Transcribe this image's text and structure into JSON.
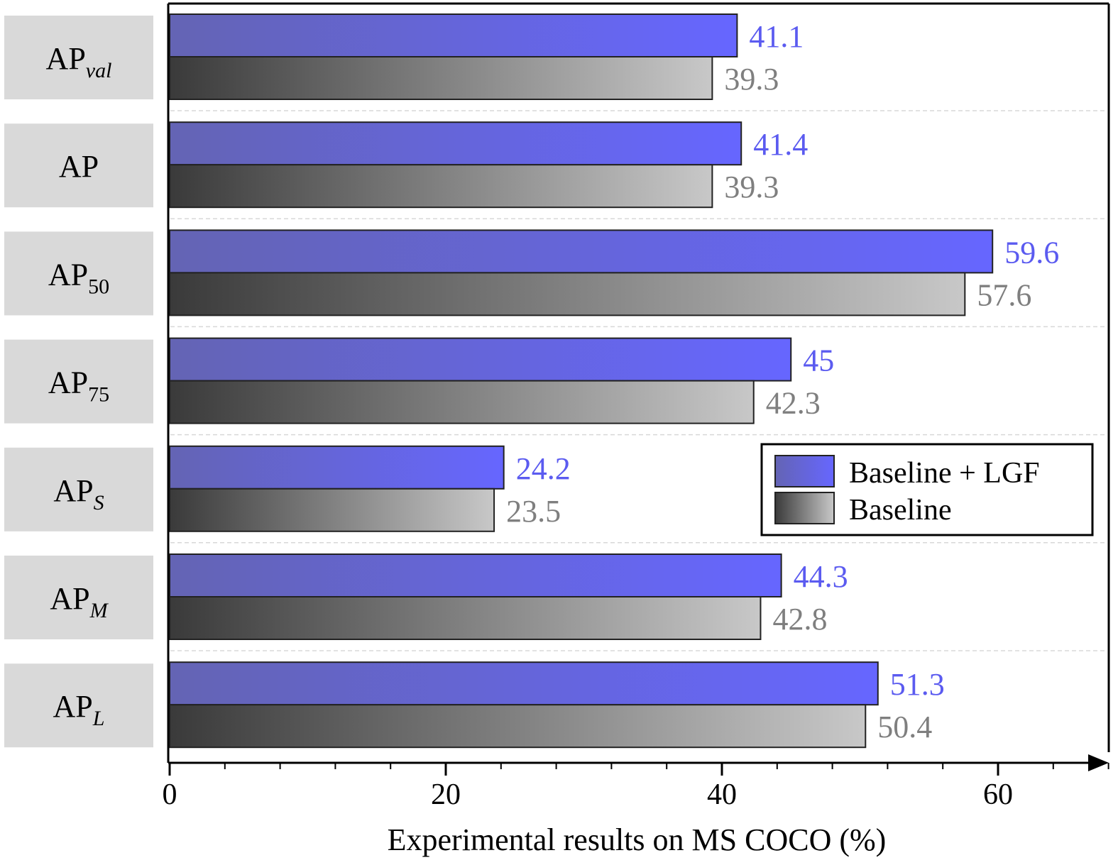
{
  "chart_data": {
    "type": "bar",
    "orientation": "horizontal",
    "categories": [
      {
        "main": "AP",
        "sub": "val",
        "sub_italic": true
      },
      {
        "main": "AP",
        "sub": "",
        "sub_italic": false
      },
      {
        "main": "AP",
        "sub": "50",
        "sub_italic": false
      },
      {
        "main": "AP",
        "sub": "75",
        "sub_italic": false
      },
      {
        "main": "AP",
        "sub": "S",
        "sub_italic": true
      },
      {
        "main": "AP",
        "sub": "M",
        "sub_italic": true
      },
      {
        "main": "AP",
        "sub": "L",
        "sub_italic": true
      }
    ],
    "series": [
      {
        "name": "Baseline + LGF",
        "values": [
          41.1,
          41.4,
          59.6,
          45,
          24.2,
          44.3,
          51.3
        ],
        "labels": [
          "41.1",
          "41.4",
          "59.6",
          "45",
          "24.2",
          "44.3",
          "51.3"
        ],
        "gradient": [
          "#6464b4",
          "#6666ff"
        ],
        "label_color": "#5b5bf0"
      },
      {
        "name": "Baseline",
        "values": [
          39.3,
          39.3,
          57.6,
          42.3,
          23.5,
          42.8,
          50.4
        ],
        "labels": [
          "39.3",
          "39.3",
          "57.6",
          "42.3",
          "23.5",
          "42.8",
          "50.4"
        ],
        "gradient": [
          "#3a3a3a",
          "#c8c8c8"
        ],
        "label_color": "#7f7f7f"
      }
    ],
    "xlabel": "Experimental results on MS COCO (%)",
    "xticks": [
      "0",
      "20",
      "40",
      "60"
    ],
    "xtick_values": [
      0,
      20,
      40,
      60
    ],
    "xlim": [
      0,
      68
    ],
    "minor_tick_step": 4,
    "legend_position": "center-right",
    "grid": "dashed horizontal separators between categories"
  }
}
